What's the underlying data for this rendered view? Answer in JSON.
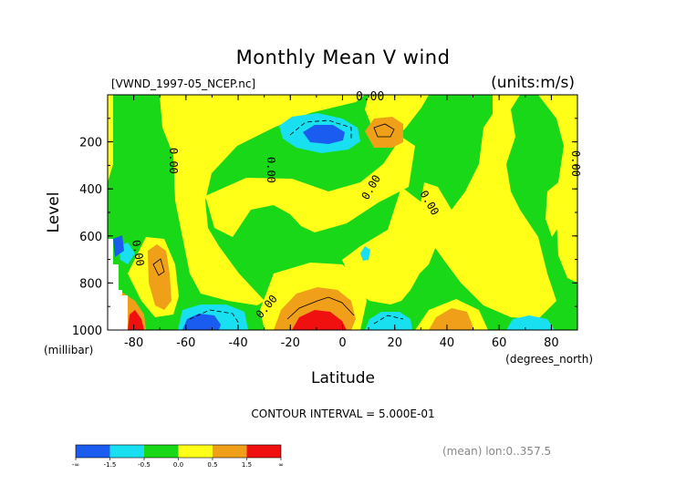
{
  "chart_data": {
    "type": "contour",
    "title": "Monthly Mean V wind",
    "subtitle_left": "[VWND_1997-05_NCEP.nc]",
    "subtitle_right": "(units:m/s)",
    "xlabel": "Latitude",
    "xunit": "(degrees_north)",
    "ylabel": "Level",
    "yunit": "(millibar)",
    "xlim": [
      -90,
      90
    ],
    "ylim": [
      1000,
      0
    ],
    "x_ticks": [
      "-80",
      "-60",
      "-40",
      "-20",
      "0",
      "20",
      "40",
      "60",
      "80"
    ],
    "x_tick_values": [
      -80,
      -60,
      -40,
      -20,
      0,
      20,
      40,
      60,
      80
    ],
    "y_ticks": [
      "200",
      "400",
      "600",
      "800",
      "1000"
    ],
    "y_tick_values": [
      200,
      400,
      600,
      800,
      1000
    ],
    "contour_interval_text": "CONTOUR INTERVAL = 5.000E-01",
    "footnote": "(mean) lon:0..357.5",
    "zero_contour_label": "0.00",
    "colorbar": {
      "colors": [
        "#1a5cf0",
        "#18e0f0",
        "#18d818",
        "#ffff18",
        "#f0a018",
        "#f01010"
      ],
      "labels": [
        "-∞",
        "-1.5",
        "-0.5",
        "0.0",
        "0.5",
        "1.5",
        "∞"
      ]
    },
    "fill_colors": {
      "lt_-1.5": "#1a5cf0",
      "-1.5_-0.5": "#18e0f0",
      "-0.5_0.0": "#18d818",
      "0.0_0.5": "#ffff18",
      "0.5_1.5": "#f0a018",
      "gt_1.5": "#f01010"
    }
  }
}
